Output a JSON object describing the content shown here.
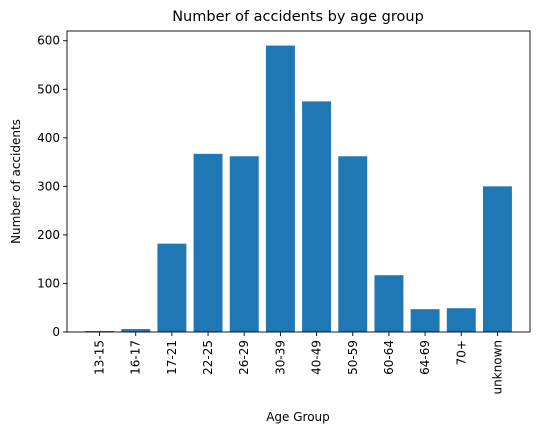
{
  "chart_data": {
    "type": "bar",
    "title": "Number of accidents by age group",
    "xlabel": "Age Group",
    "ylabel": "Number of accidents",
    "categories": [
      "13-15",
      "16-17",
      "17-21",
      "22-25",
      "26-29",
      "30-39",
      "40-49",
      "50-59",
      "60-64",
      "64-69",
      "70+",
      "unknown"
    ],
    "values": [
      2,
      6,
      182,
      367,
      362,
      590,
      475,
      362,
      117,
      47,
      49,
      300
    ],
    "ylim": [
      0,
      620
    ],
    "yticks": [
      0,
      100,
      200,
      300,
      400,
      500,
      600
    ],
    "bar_color": "#1f77b4",
    "grid": false,
    "legend": "none"
  }
}
